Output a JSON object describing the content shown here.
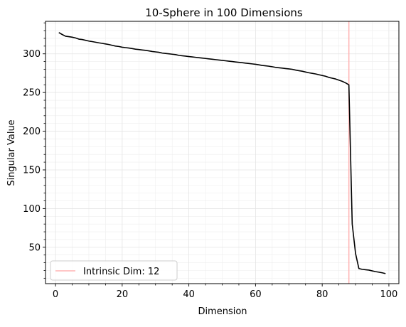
{
  "chart_data": {
    "type": "line",
    "title": "10-Sphere in 100 Dimensions",
    "xlabel": "Dimension",
    "ylabel": "Singular Value",
    "xlim": [
      -3,
      103
    ],
    "ylim": [
      3,
      342
    ],
    "xticks": [
      0,
      20,
      40,
      60,
      80,
      100
    ],
    "yticks": [
      50,
      100,
      150,
      200,
      250,
      300
    ],
    "grid": true,
    "legend_position": "lower left",
    "series": [
      {
        "color": "#000000",
        "x": [
          1,
          2,
          3,
          4,
          5,
          6,
          7,
          8,
          9,
          10,
          11,
          12,
          13,
          14,
          15,
          16,
          17,
          18,
          19,
          20,
          21,
          22,
          23,
          24,
          25,
          26,
          27,
          28,
          29,
          30,
          31,
          32,
          33,
          34,
          35,
          36,
          37,
          38,
          39,
          40,
          41,
          42,
          43,
          44,
          45,
          46,
          47,
          48,
          49,
          50,
          51,
          52,
          53,
          54,
          55,
          56,
          57,
          58,
          59,
          60,
          61,
          62,
          63,
          64,
          65,
          66,
          67,
          68,
          69,
          70,
          71,
          72,
          73,
          74,
          75,
          76,
          77,
          78,
          79,
          80,
          81,
          82,
          83,
          84,
          85,
          86,
          87,
          88,
          89,
          90,
          91,
          92,
          93,
          94,
          95,
          96,
          97,
          98,
          99
        ],
        "values": [
          327.5,
          325.0,
          322.8,
          322.2,
          321.5,
          320.5,
          319.0,
          318.5,
          317.5,
          316.5,
          315.8,
          315.0,
          314.2,
          313.5,
          312.8,
          312.0,
          311.0,
          310.0,
          309.5,
          308.5,
          308.0,
          307.5,
          306.8,
          306.0,
          305.5,
          305.0,
          304.5,
          303.8,
          303.0,
          302.5,
          302.0,
          301.0,
          300.5,
          300.0,
          299.5,
          299.0,
          298.0,
          297.5,
          297.0,
          296.5,
          296.0,
          295.5,
          295.0,
          294.5,
          294.0,
          293.5,
          293.0,
          292.5,
          292.0,
          291.5,
          291.0,
          290.5,
          290.0,
          289.5,
          289.0,
          288.5,
          288.0,
          287.5,
          287.0,
          286.5,
          285.8,
          285.0,
          284.5,
          284.0,
          283.3,
          282.5,
          282.0,
          281.5,
          281.0,
          280.5,
          280.0,
          279.0,
          278.2,
          277.5,
          276.5,
          275.5,
          274.8,
          274.0,
          273.0,
          272.0,
          271.0,
          269.5,
          268.5,
          267.5,
          266.0,
          264.5,
          262.5,
          260.0,
          80.0,
          42.0,
          22.5,
          21.5,
          21.0,
          20.5,
          19.5,
          18.5,
          17.8,
          17.0,
          16.0
        ]
      }
    ],
    "vline": {
      "x": 88,
      "color": "#ffb3b3",
      "label": "Intrinsic Dim: 12"
    }
  }
}
